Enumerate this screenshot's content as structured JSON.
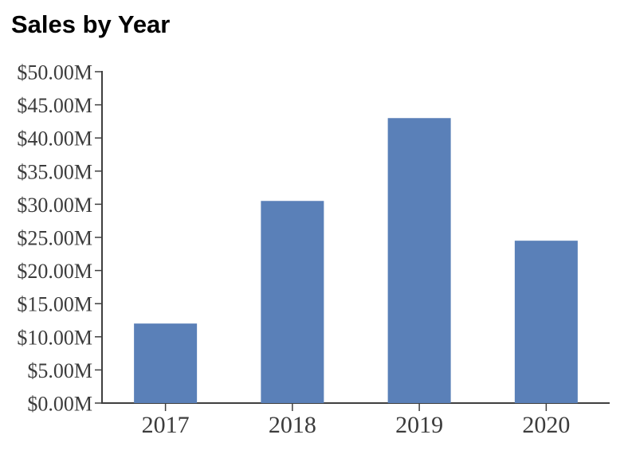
{
  "page": {
    "background": "#FFFFFF"
  },
  "chart_data": {
    "type": "bar",
    "title": "Sales by Year",
    "categories": [
      "2017",
      "2018",
      "2019",
      "2020"
    ],
    "values": [
      12,
      30.5,
      43,
      24.5
    ],
    "xlabel": "",
    "ylabel": "",
    "ylim": [
      0,
      50
    ],
    "y_tick_step": 5,
    "y_tick_labels": [
      "$0.00M",
      "$5.00M",
      "$10.00M",
      "$15.00M",
      "$20.00M",
      "$25.00M",
      "$30.00M",
      "$35.00M",
      "$40.00M",
      "$45.00M",
      "$50.00M"
    ],
    "grid": false,
    "legend": false,
    "colors": {
      "bar": "#5A80B8",
      "axis": "#3F3F3F",
      "tick_label": "#3C3C3C",
      "title": "#000000",
      "background": "#FFFFFF"
    }
  }
}
